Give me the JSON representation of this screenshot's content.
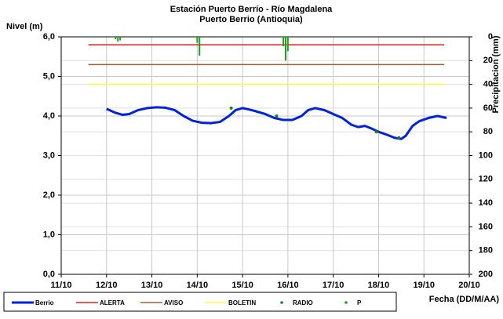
{
  "chart_data": {
    "type": "line",
    "title": "Estación Puerto Berrío - Río Magdalena",
    "subtitle": "Puerto Berrio (Antioquia)",
    "y_label": "Nivel (m)",
    "y2_label": "Precipitacion (mm)",
    "x_label": "Fecha (DD/M/AA)",
    "xlim": [
      11,
      20
    ],
    "xticks": [
      {
        "value": 11,
        "label": "11/10"
      },
      {
        "value": 12,
        "label": "12/10"
      },
      {
        "value": 13,
        "label": "13/10"
      },
      {
        "value": 14,
        "label": "14/10"
      },
      {
        "value": 15,
        "label": "15/10"
      },
      {
        "value": 16,
        "label": "16/10"
      },
      {
        "value": 17,
        "label": "17/10"
      },
      {
        "value": 18,
        "label": "18/10"
      },
      {
        "value": 19,
        "label": "19/10"
      },
      {
        "value": 20,
        "label": "20/10"
      }
    ],
    "ylim": [
      0,
      6
    ],
    "yticks": [
      {
        "value": 0,
        "label": "0,0"
      },
      {
        "value": 1,
        "label": "1,0"
      },
      {
        "value": 2,
        "label": "2,0"
      },
      {
        "value": 3,
        "label": "3,0"
      },
      {
        "value": 4,
        "label": "4,0"
      },
      {
        "value": 5,
        "label": "5,0"
      },
      {
        "value": 6,
        "label": "6,0"
      }
    ],
    "y2lim": [
      0,
      200
    ],
    "y2ticks": [
      0,
      20,
      40,
      60,
      80,
      100,
      120,
      140,
      160,
      180,
      200
    ],
    "y2_reversed": true,
    "grid": true,
    "series": [
      {
        "name": "Berrio",
        "color": "#0022dd",
        "kind": "line",
        "width": 3,
        "x": [
          12.0,
          12.2,
          12.35,
          12.5,
          12.7,
          12.9,
          13.1,
          13.3,
          13.5,
          13.7,
          13.9,
          14.1,
          14.3,
          14.5,
          14.7,
          14.85,
          15.0,
          15.2,
          15.5,
          15.7,
          15.9,
          16.1,
          16.3,
          16.45,
          16.6,
          16.8,
          17.0,
          17.2,
          17.4,
          17.55,
          17.7,
          17.85,
          18.0,
          18.2,
          18.35,
          18.5,
          18.6,
          18.75,
          18.9,
          19.1,
          19.3,
          19.5
        ],
        "values": [
          4.18,
          4.08,
          4.03,
          4.05,
          4.15,
          4.2,
          4.22,
          4.21,
          4.15,
          4.0,
          3.88,
          3.83,
          3.82,
          3.85,
          4.0,
          4.15,
          4.2,
          4.15,
          4.05,
          3.95,
          3.9,
          3.9,
          4.0,
          4.15,
          4.2,
          4.15,
          4.05,
          3.95,
          3.78,
          3.72,
          3.75,
          3.68,
          3.6,
          3.52,
          3.45,
          3.42,
          3.5,
          3.75,
          3.87,
          3.95,
          4.0,
          3.95
        ]
      },
      {
        "name": "ALERTA",
        "color": "#e02020",
        "kind": "line",
        "width": 1.5,
        "x": [
          11.6,
          19.45
        ],
        "values": [
          5.8,
          5.8
        ]
      },
      {
        "name": "AVISO",
        "color": "#a06030",
        "kind": "line",
        "width": 1.5,
        "x": [
          11.6,
          19.45
        ],
        "values": [
          5.3,
          5.3
        ]
      },
      {
        "name": "BOLETIN",
        "color": "#ffff40",
        "kind": "line",
        "width": 1.5,
        "x": [
          11.6,
          19.45
        ],
        "values": [
          4.8,
          4.8
        ]
      },
      {
        "name": "RADIO",
        "color": "#208020",
        "kind": "dots",
        "x": [
          14.75,
          15.75,
          17.95,
          18.45
        ],
        "values": [
          4.2,
          4.0,
          3.6,
          3.45
        ]
      },
      {
        "name": "P",
        "color": "#20a020",
        "kind": "bars",
        "axis": "y2",
        "x": [
          12.2,
          12.25,
          12.3,
          14.0,
          14.05,
          15.9,
          15.95,
          16.0
        ],
        "values": [
          2,
          4,
          3,
          5,
          16,
          8,
          20,
          12
        ]
      }
    ]
  }
}
